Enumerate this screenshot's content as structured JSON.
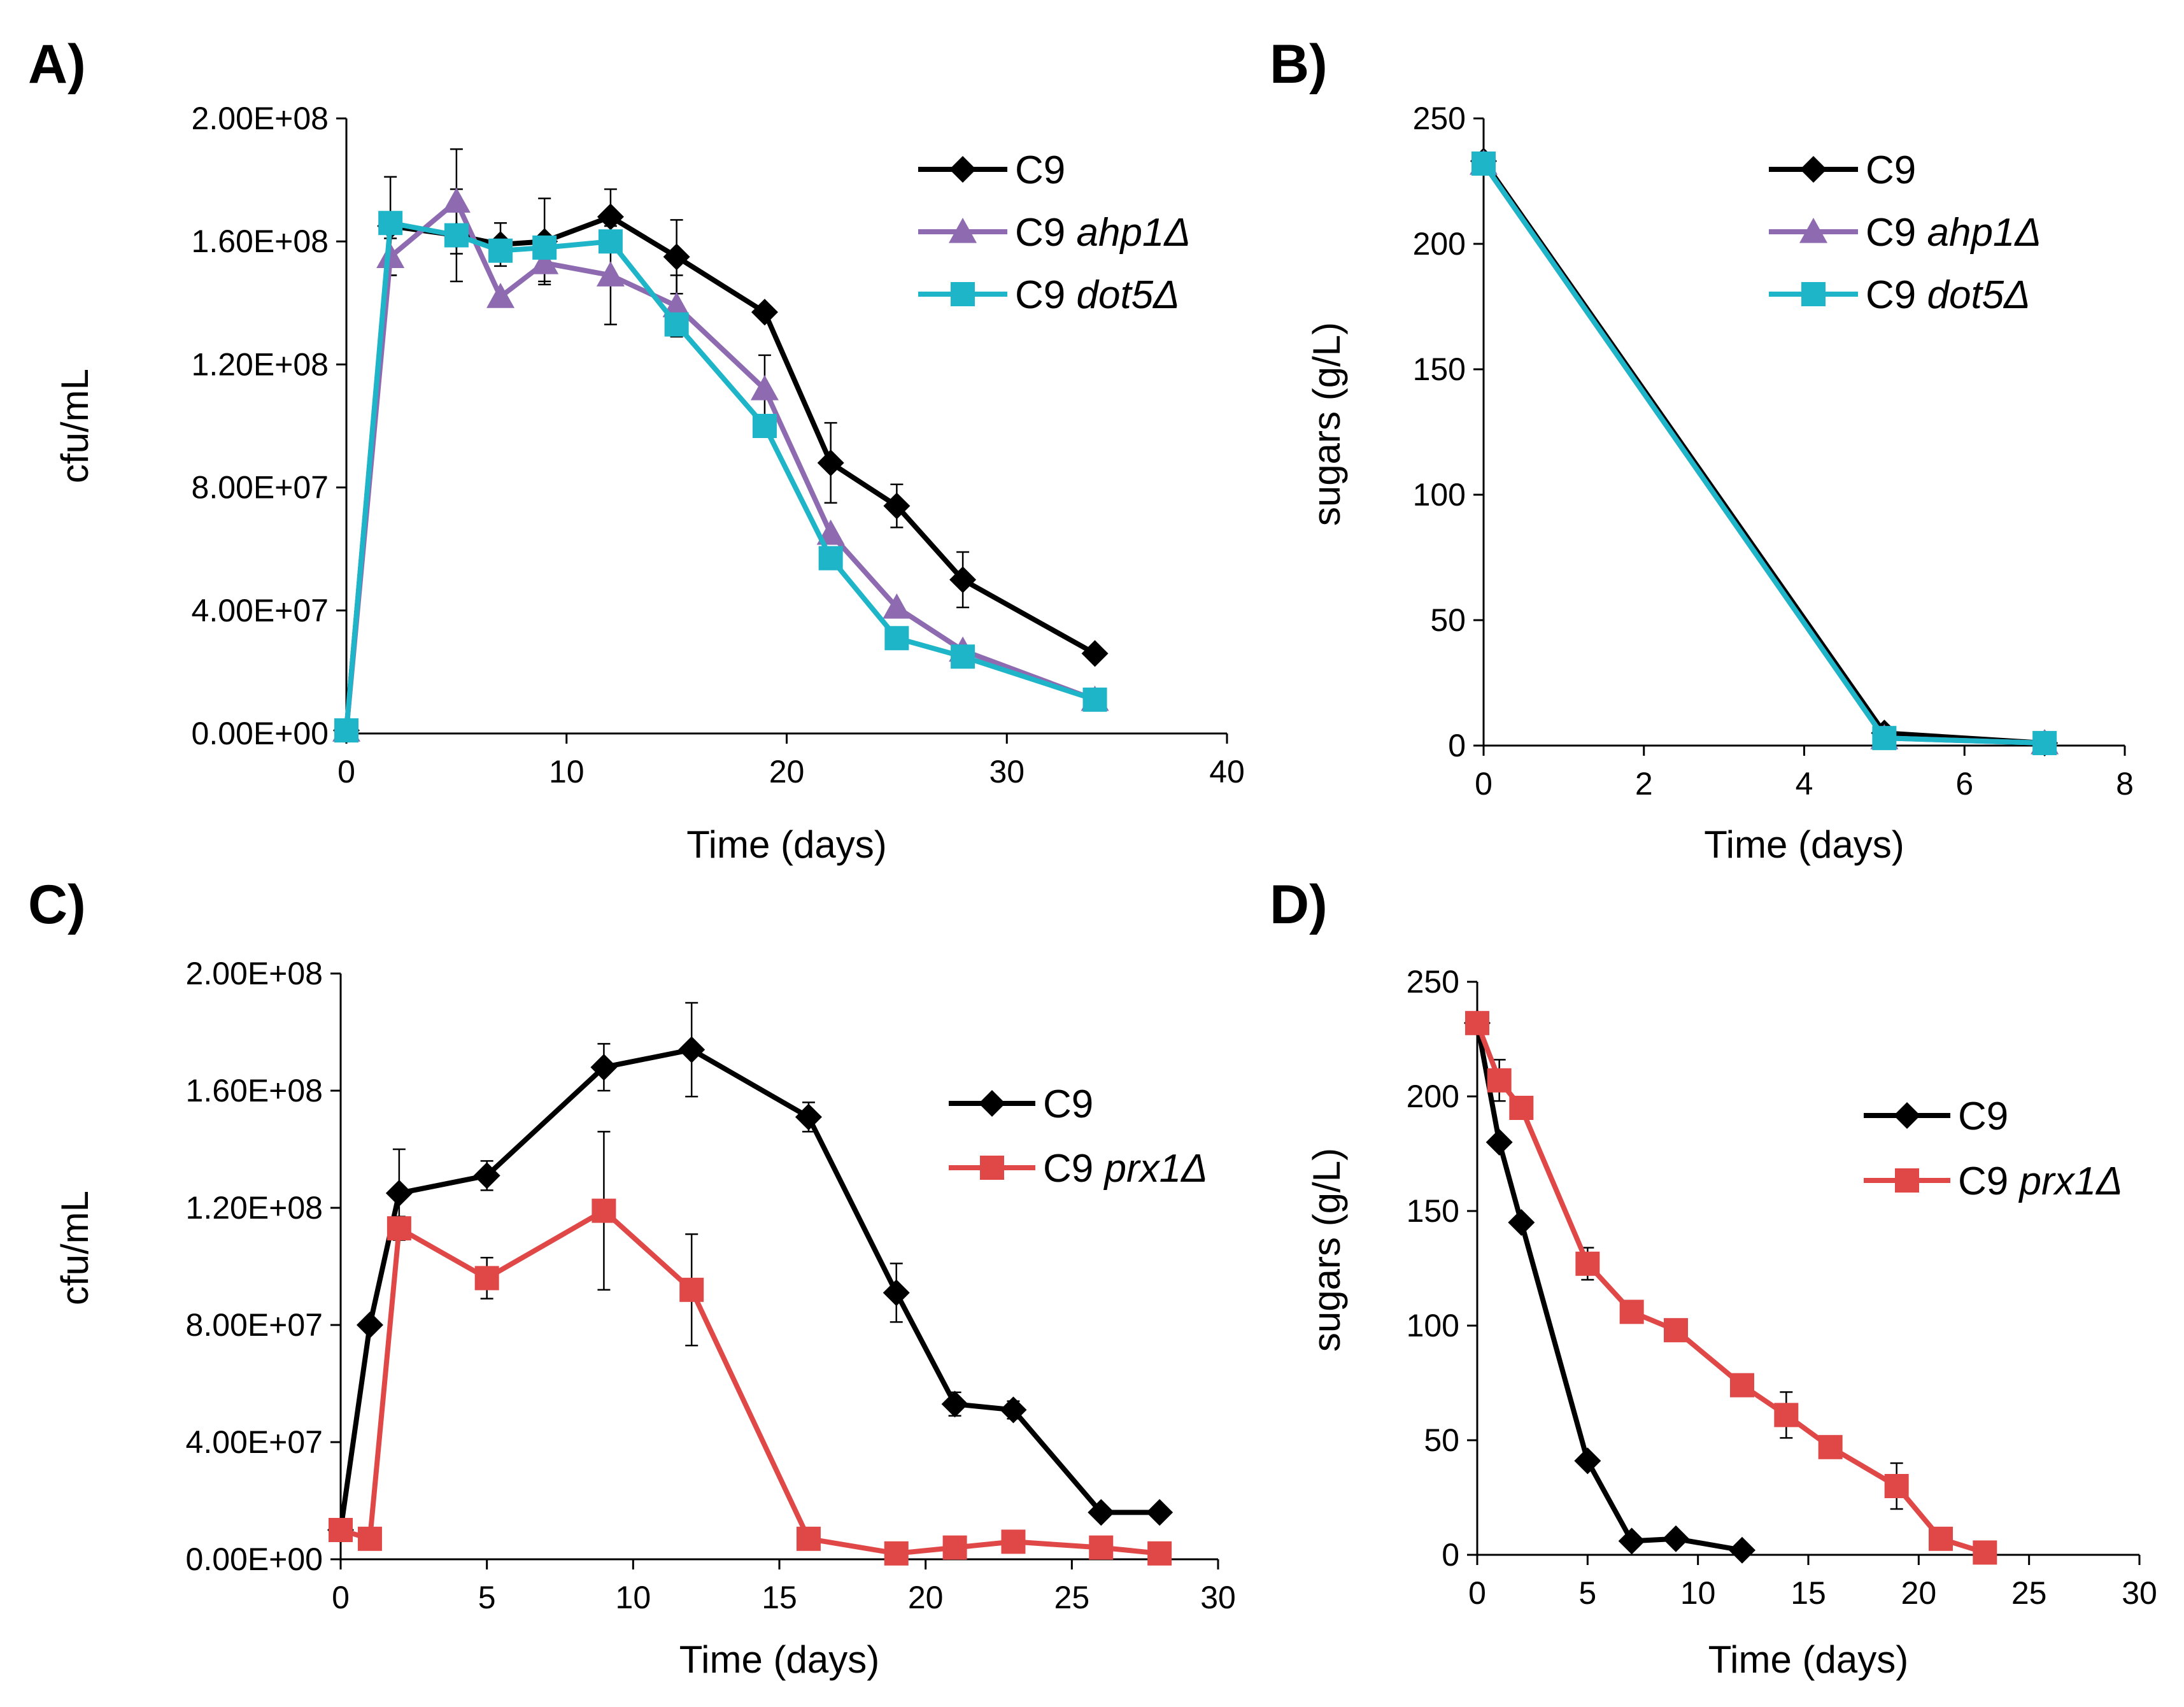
{
  "chart_data": [
    {
      "panel": "A)",
      "type": "line",
      "xlabel": "Time (days)",
      "ylabel": "cfu/mL",
      "xlim": [
        0,
        40
      ],
      "ylim": [
        0,
        200000000
      ],
      "xticks": [
        0,
        10,
        20,
        30,
        40
      ],
      "xtick_labels": [
        "0",
        "10",
        "20",
        "30",
        "40"
      ],
      "yticks": [
        0,
        40000000,
        80000000,
        120000000,
        160000000,
        200000000
      ],
      "ytick_labels": [
        "0.00E+00",
        "4.00E+07",
        "8.00E+07",
        "1.20E+08",
        "1.60E+08",
        "2.00E+08"
      ],
      "legend_position": "top-right",
      "series": [
        {
          "name": "C9",
          "name_prefix": "C9",
          "name_italic": "",
          "color": "#000000",
          "marker": "diamond",
          "x": [
            0,
            2,
            5,
            7,
            9,
            12,
            15,
            19,
            22,
            25,
            28,
            34
          ],
          "y": [
            1000000,
            165000000,
            162000000,
            159000000,
            160000000,
            168000000,
            155000000,
            137000000,
            88000000,
            74000000,
            50000000,
            26000000
          ],
          "err": [
            0,
            16000000,
            15000000,
            7000000,
            14000000,
            9000000,
            12000000,
            2000000,
            13000000,
            7000000,
            9000000,
            1000000
          ]
        },
        {
          "name": "C9 ahp1Δ",
          "name_prefix": "C9 ",
          "name_italic": "ahp1Δ",
          "color": "#8e6bb0",
          "marker": "triangle",
          "x": [
            0,
            2,
            5,
            7,
            9,
            12,
            15,
            19,
            22,
            25,
            28,
            34
          ],
          "y": [
            1000000,
            155000000,
            173000000,
            142000000,
            153000000,
            149000000,
            139000000,
            112000000,
            65000000,
            41000000,
            27000000,
            11000000
          ],
          "err": [
            0,
            6000000,
            17000000,
            0,
            6000000,
            16000000,
            10000000,
            11000000,
            0,
            0,
            0,
            0
          ]
        },
        {
          "name": "C9 dot5Δ",
          "name_prefix": "C9 ",
          "name_italic": "dot5Δ",
          "color": "#1fb5c8",
          "marker": "square",
          "x": [
            0,
            2,
            5,
            7,
            9,
            12,
            15,
            19,
            22,
            25,
            28,
            34
          ],
          "y": [
            1000000,
            166000000,
            162000000,
            157000000,
            158000000,
            160000000,
            133000000,
            100000000,
            57000000,
            31000000,
            25000000,
            11000000
          ],
          "err": [
            0,
            0,
            0,
            0,
            0,
            0,
            0,
            0,
            0,
            0,
            0,
            0
          ]
        }
      ]
    },
    {
      "panel": "B)",
      "type": "line",
      "xlabel": "Time (days)",
      "ylabel": "sugars (g/L)",
      "xlim": [
        0,
        8
      ],
      "ylim": [
        0,
        250
      ],
      "xticks": [
        0,
        2,
        4,
        6,
        8
      ],
      "xtick_labels": [
        "0",
        "2",
        "4",
        "6",
        "8"
      ],
      "yticks": [
        0,
        50,
        100,
        150,
        200,
        250
      ],
      "ytick_labels": [
        "0",
        "50",
        "100",
        "150",
        "200",
        "250"
      ],
      "legend_position": "top-right",
      "series": [
        {
          "name": "C9",
          "name_prefix": "C9",
          "name_italic": "",
          "color": "#000000",
          "marker": "diamond",
          "x": [
            0,
            5,
            7
          ],
          "y": [
            233,
            5,
            1
          ],
          "err": [
            0,
            0,
            0
          ]
        },
        {
          "name": "C9 ahp1Δ",
          "name_prefix": "C9 ",
          "name_italic": "ahp1Δ",
          "color": "#8e6bb0",
          "marker": "triangle",
          "x": [
            0,
            5,
            7
          ],
          "y": [
            232,
            3,
            1
          ],
          "err": [
            0,
            0,
            0
          ]
        },
        {
          "name": "C9 dot5Δ",
          "name_prefix": "C9 ",
          "name_italic": "dot5Δ",
          "color": "#1fb5c8",
          "marker": "square",
          "x": [
            0,
            5,
            7
          ],
          "y": [
            232,
            3,
            1
          ],
          "err": [
            0,
            0,
            0
          ]
        }
      ]
    },
    {
      "panel": "C)",
      "type": "line",
      "xlabel": "Time (days)",
      "ylabel": "cfu/mL",
      "xlim": [
        0,
        30
      ],
      "ylim": [
        0,
        200000000
      ],
      "xticks": [
        0,
        5,
        10,
        15,
        20,
        25,
        30
      ],
      "xtick_labels": [
        "0",
        "5",
        "10",
        "15",
        "20",
        "25",
        "30"
      ],
      "yticks": [
        0,
        40000000,
        80000000,
        120000000,
        160000000,
        200000000
      ],
      "ytick_labels": [
        "0.00E+00",
        "4.00E+07",
        "8.00E+07",
        "1.20E+08",
        "1.60E+08",
        "2.00E+08"
      ],
      "legend_position": "right",
      "series": [
        {
          "name": "C9",
          "name_prefix": "C9",
          "name_italic": "",
          "color": "#000000",
          "marker": "diamond",
          "x": [
            0,
            1,
            2,
            5,
            9,
            12,
            16,
            19,
            21,
            23,
            26,
            28
          ],
          "y": [
            10000000,
            80000000,
            125000000,
            131000000,
            168000000,
            174000000,
            151000000,
            91000000,
            53000000,
            51000000,
            16000000,
            16000000
          ],
          "err": [
            0,
            0,
            15000000,
            5000000,
            8000000,
            16000000,
            5000000,
            10000000,
            4000000,
            3000000,
            0,
            2000000
          ]
        },
        {
          "name": "C9 prx1Δ",
          "name_prefix": "C9 ",
          "name_italic": "prx1Δ",
          "color": "#e04848",
          "marker": "square",
          "x": [
            0,
            1,
            2,
            5,
            9,
            12,
            16,
            19,
            21,
            23,
            26,
            28
          ],
          "y": [
            10000000,
            7000000,
            113000000,
            96000000,
            119000000,
            92000000,
            7000000,
            2000000,
            4000000,
            6000000,
            4000000,
            2000000
          ],
          "err": [
            0,
            0,
            4000000,
            7000000,
            27000000,
            19000000,
            0,
            0,
            0,
            0,
            0,
            0
          ]
        }
      ]
    },
    {
      "panel": "D)",
      "type": "line",
      "xlabel": "Time (days)",
      "ylabel": "sugars (g/L)",
      "xlim": [
        0,
        30
      ],
      "ylim": [
        0,
        250
      ],
      "xticks": [
        0,
        5,
        10,
        15,
        20,
        25,
        30
      ],
      "xtick_labels": [
        "0",
        "5",
        "10",
        "15",
        "20",
        "25",
        "30"
      ],
      "yticks": [
        0,
        50,
        100,
        150,
        200,
        250
      ],
      "ytick_labels": [
        "0",
        "50",
        "100",
        "150",
        "200",
        "250"
      ],
      "legend_position": "right",
      "series": [
        {
          "name": "C9",
          "name_prefix": "C9",
          "name_italic": "",
          "color": "#000000",
          "marker": "diamond",
          "x": [
            0,
            1,
            2,
            5,
            7,
            9,
            12
          ],
          "y": [
            232,
            180,
            145,
            41,
            6,
            7,
            2
          ],
          "err": [
            0,
            0,
            0,
            0,
            0,
            0,
            0
          ]
        },
        {
          "name": "C9 prx1Δ",
          "name_prefix": "C9 ",
          "name_italic": "prx1Δ",
          "color": "#e04848",
          "marker": "square",
          "x": [
            0,
            1,
            2,
            5,
            7,
            9,
            12,
            14,
            16,
            19,
            21,
            23
          ],
          "y": [
            232,
            207,
            195,
            127,
            106,
            98,
            74,
            61,
            47,
            30,
            7,
            1
          ],
          "err": [
            0,
            9,
            0,
            7,
            0,
            0,
            0,
            10,
            0,
            10,
            0,
            0
          ]
        }
      ]
    }
  ]
}
